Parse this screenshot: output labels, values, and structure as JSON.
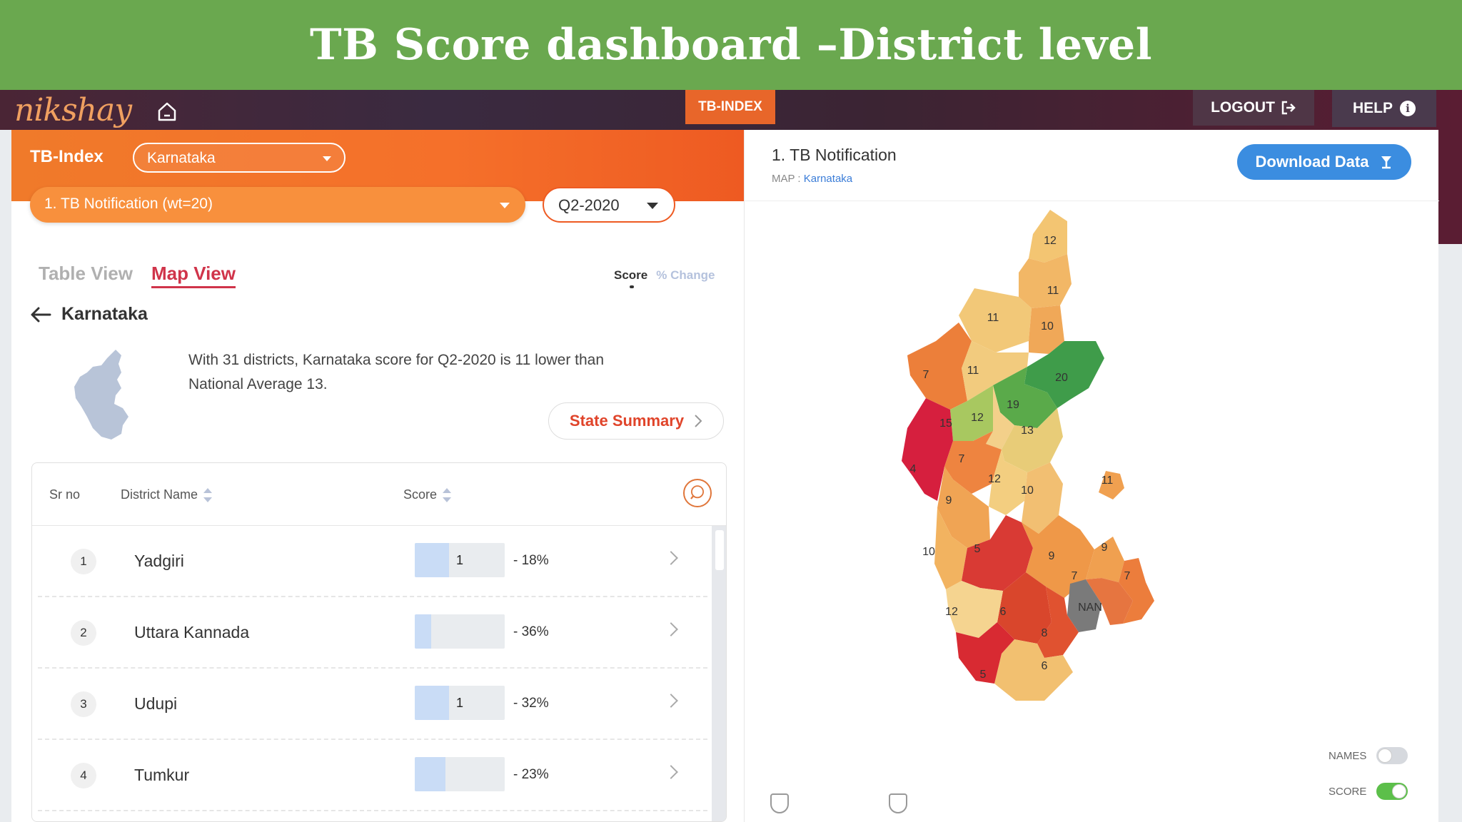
{
  "banner": {
    "title": "TB Score dashboard –District level"
  },
  "topbar": {
    "logo_text": "nikshay",
    "center_tab": "TB-INDEX",
    "logout_label": "LOGOUT",
    "help_label": "HELP"
  },
  "filters": {
    "panel_label": "TB-Index",
    "state_value": "Karnataka",
    "indicator_value": "1. TB Notification (wt=20)",
    "quarter_value": "Q2-2020"
  },
  "view_tabs": {
    "table": "Table View",
    "map": "Map View",
    "active": "Map View"
  },
  "metric_toggle": {
    "score": "Score",
    "change": "% Change",
    "active": "Score"
  },
  "breadcrumb": {
    "state": "Karnataka"
  },
  "summary": {
    "text": "With 31 districts, Karnataka score for Q2-2020 is 11 lower than National Average 13.",
    "button_label": "State Summary"
  },
  "table": {
    "headers": {
      "sr": "Sr no",
      "district": "District Name",
      "score": "Score"
    },
    "rows": [
      {
        "rank": "1",
        "district": "Yadgiri",
        "score_label": "1",
        "score_fill": 0.38,
        "change": "- 18%"
      },
      {
        "rank": "2",
        "district": "Uttara Kannada",
        "score_label": "",
        "score_fill": 0.18,
        "change": "- 36%"
      },
      {
        "rank": "3",
        "district": "Udupi",
        "score_label": "1",
        "score_fill": 0.38,
        "change": "- 32%"
      },
      {
        "rank": "4",
        "district": "Tumkur",
        "score_label": "",
        "score_fill": 0.34,
        "change": "- 23%"
      }
    ]
  },
  "map_panel": {
    "title": "1. TB Notification",
    "sub_prefix": "MAP : ",
    "sub_state": "Karnataka",
    "download_label": "Download Data",
    "toggle_names_label": "NAMES",
    "toggle_score_label": "SCORE",
    "names_on": false,
    "score_on": true,
    "district_scores": [
      "12",
      "11",
      "11",
      "10",
      "20",
      "7",
      "11",
      "19",
      "15",
      "12",
      "13",
      "4",
      "7",
      "12",
      "10",
      "9",
      "10",
      "5",
      "9",
      "9",
      "7",
      "7",
      "NAN",
      "6",
      "8",
      "12",
      "6",
      "5",
      "11"
    ]
  },
  "colors": {
    "banner": "#6aa84f",
    "orange": "#f07a2a",
    "accent_red": "#d0344a",
    "download_blue": "#3b8de0",
    "toggle_green": "#5cbf4a"
  }
}
